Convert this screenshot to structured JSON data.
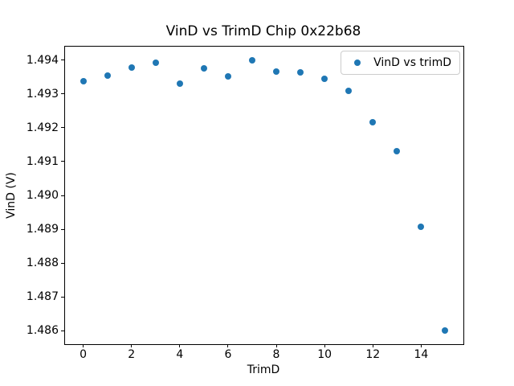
{
  "chart_data": {
    "type": "scatter",
    "title": "VinD vs TrimD Chip 0x22b68",
    "xlabel": "TrimD",
    "ylabel": "VinD (V)",
    "x": [
      0,
      1,
      2,
      3,
      4,
      5,
      6,
      7,
      8,
      9,
      10,
      11,
      12,
      13,
      14,
      15
    ],
    "series": [
      {
        "name": "VinD vs trimD",
        "color": "#1f77b4",
        "values": [
          1.49338,
          1.49354,
          1.49379,
          1.49393,
          1.4933,
          1.49375,
          1.49353,
          1.494,
          1.49367,
          1.49363,
          1.49344,
          1.49309,
          1.49216,
          1.49132,
          1.48908,
          1.486
        ]
      }
    ],
    "xlim": [
      -0.75,
      15.75
    ],
    "ylim": [
      1.4856,
      1.4944
    ],
    "x_ticks": [
      0,
      2,
      4,
      6,
      8,
      10,
      12,
      14
    ],
    "y_ticks": [
      1.486,
      1.487,
      1.488,
      1.489,
      1.49,
      1.491,
      1.492,
      1.493,
      1.494
    ],
    "y_tick_decimals": 3,
    "grid": false,
    "legend_position": "upper right",
    "colors": {
      "marker": "#1f77b4",
      "spine": "#000000",
      "legend_border": "#cccccc",
      "background": "#ffffff"
    }
  }
}
